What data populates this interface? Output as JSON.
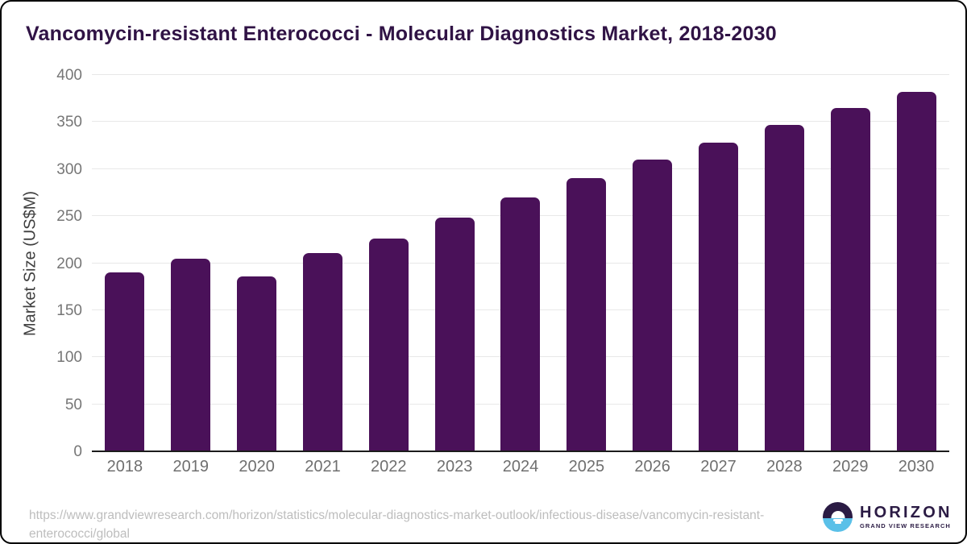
{
  "title": "Vancomycin-resistant Enterococci - Molecular Diagnostics Market, 2018-2030",
  "chart_data": {
    "type": "bar",
    "categories": [
      "2018",
      "2019",
      "2020",
      "2021",
      "2022",
      "2023",
      "2024",
      "2025",
      "2026",
      "2027",
      "2028",
      "2029",
      "2030"
    ],
    "values": [
      190,
      205,
      186,
      211,
      226,
      248,
      270,
      290,
      310,
      328,
      347,
      365,
      382
    ],
    "title": "Vancomycin-resistant Enterococci - Molecular Diagnostics Market, 2018-2030",
    "xlabel": "",
    "ylabel": "Market Size (US$M)",
    "ylim": [
      0,
      400
    ],
    "ytick_step": 50,
    "grid": true,
    "legend": "none",
    "bar_color": "#4a1159"
  },
  "colors": {
    "title_text": "#301345",
    "bar": "#4a1159",
    "tick_label": "#767676",
    "gridline": "#e8e8e8",
    "axis_line": "#1c1c1c",
    "source_text": "#bdbdbd",
    "logo_purple": "#2b1b44",
    "logo_blue": "#5ac0e8"
  },
  "footer": {
    "source_url": "https://www.grandviewresearch.com/horizon/statistics/molecular-diagnostics-market-outlook/infectious-disease/vancomycin-resistant-enterococci/global",
    "logo": {
      "name": "HORIZON",
      "subtitle": "GRAND VIEW RESEARCH"
    }
  }
}
